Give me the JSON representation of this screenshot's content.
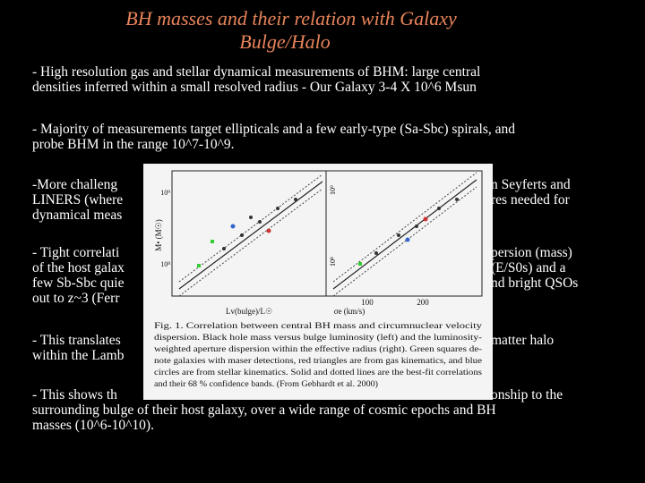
{
  "title": {
    "lines": [
      "BH masses and their relation with Galaxy",
      "Bulge/Halo"
    ]
  },
  "paragraphs": [
    {
      "lines": [
        {
          "left": "- High resolution gas and stellar dynamical measurements of BHM: large central"
        },
        {
          "left": "densities inferred within a small resolved radius - Our Galaxy 3-4 X 10^6 Msun"
        }
      ]
    },
    {
      "lines": [
        {
          "left": "- Majority of measurements target ellipticals and a few early-type (Sa-Sbc) spirals, and"
        },
        {
          "left": "probe BHM in the range 10^7-10^9."
        }
      ]
    },
    {
      "lines": [
        {
          "left": "-More challeng",
          "right": "n Seyferts and"
        },
        {
          "left": "LINERS (where",
          "right": "res needed for"
        },
        {
          "left": "dynamical meas"
        }
      ]
    },
    {
      "lines": [
        {
          "left": "- Tight correlati",
          "right": "persion (mass)"
        },
        {
          "left": "of the host galax",
          "right": "(E/S0s) and a"
        },
        {
          "left": "few Sb-Sbc quie",
          "right": "nd bright QSOs"
        },
        {
          "left": "out to z~3 (Ferr"
        }
      ]
    },
    {
      "lines": [
        {
          "left": "- This translates",
          "right": "matter halo"
        },
        {
          "left": "within the Lamb"
        }
      ]
    },
    {
      "lines": [
        {
          "left": "-  This shows th",
          "right": "onship to the"
        },
        {
          "left": "surrounding bulge of their host galaxy, over a wide range of cosmic epochs and BH"
        },
        {
          "left": "masses (10^6-10^10)."
        }
      ]
    }
  ],
  "figure": {
    "y_label": "M• (M☉)",
    "left_x_label": "Lv(bulge)/L☉",
    "right_x_label": "σe (km/s)",
    "left_y_ticks": [
      "10⁹",
      "10⁸"
    ],
    "right_y_ticks": [
      "10⁹",
      "10⁸"
    ],
    "right_x_ticks": [
      "100",
      "200"
    ],
    "caption": [
      "Fig. 1. Correlation between central BH mass and circumnuclear velocity",
      "dispersion. Black hole mass versus bulge luminosity (left) and the luminosity-",
      "weighted aperture dispersion within the effective radius (right). Green squares de-",
      "note galaxies with maser detections, red triangles are from gas kinematics, and blue",
      "circles are from stellar kinematics. Solid and dotted lines are the best-fit correlations",
      "and their 68 % confidence bands. (From Gebhardt et al. 2000)"
    ]
  }
}
